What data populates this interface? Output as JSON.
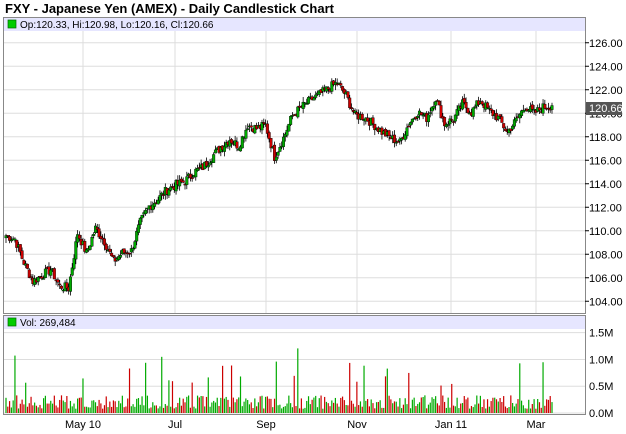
{
  "title": "FXY - Japanese Yen (AMEX) - Daily Candlestick Chart",
  "price_legend": "Op:120.33, Hi:120.98, Lo:120.16, Cl:120.66",
  "volume_legend": "Vol: 269,484",
  "last_price_label": "120.66",
  "colors": {
    "up": "#00aa00",
    "down": "#cc0000",
    "legend_bg": "#e6e6ff",
    "grid": "#dddddd",
    "last_badge": "#555555"
  },
  "chart_data": [
    {
      "type": "candlestick",
      "title": "FXY - Japanese Yen (AMEX) - Daily Candlestick Chart",
      "x_ticks": [
        "May 10",
        "Jul",
        "Sep",
        "Nov",
        "Jan 11",
        "Mar"
      ],
      "y_ticks": [
        "104.00",
        "106.00",
        "108.00",
        "110.00",
        "112.00",
        "114.00",
        "116.00",
        "118.00",
        "120.00",
        "122.00",
        "124.00",
        "126.00"
      ],
      "ylim": [
        103,
        127
      ],
      "grid": true,
      "weekly_close": [
        109.6,
        109.3,
        107.3,
        105.7,
        106.2,
        106.7,
        105.3,
        105.1,
        109.8,
        108.1,
        110.2,
        109.1,
        107.4,
        108.1,
        108.3,
        110.7,
        112.1,
        112.7,
        113.5,
        113.9,
        114.2,
        115.0,
        115.4,
        116.3,
        117.1,
        117.8,
        117.2,
        119.0,
        118.7,
        119.0,
        116.3,
        117.9,
        119.8,
        120.5,
        121.1,
        121.6,
        122.1,
        122.6,
        121.5,
        119.8,
        119.7,
        119.1,
        118.4,
        117.9,
        117.5,
        119.1,
        120.1,
        119.6,
        121.3,
        119.1,
        119.5,
        120.8,
        120.1,
        121.1,
        120.2,
        119.6,
        118.4,
        119.4,
        120.6,
        120.0,
        120.5,
        120.66
      ]
    },
    {
      "type": "bar",
      "title": "Volume",
      "y_ticks": [
        "0.0M",
        "0.5M",
        "1.0M",
        "1.5M"
      ],
      "ylim": [
        0,
        1.55
      ]
    }
  ]
}
